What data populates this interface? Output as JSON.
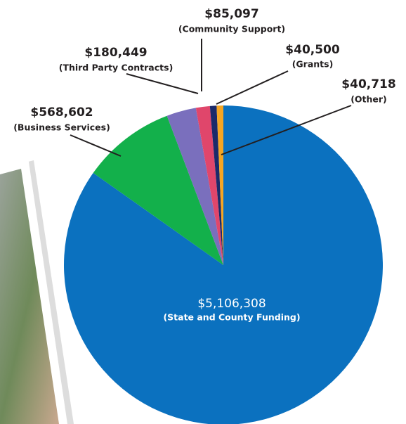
{
  "chart_data": {
    "type": "pie",
    "categories": [
      "(State and County Funding)",
      "(Business Services)",
      "(Third Party Contracts)",
      "(Community Support)",
      "(Grants)",
      "(Other)"
    ],
    "values": [
      5106308,
      568602,
      180449,
      85097,
      40500,
      40718
    ],
    "value_labels": [
      "$5,106,308",
      "$568,602",
      "$180,449",
      "$85,097",
      "$40,500",
      "$40,718"
    ],
    "colors": [
      "#0b71bf",
      "#13b04b",
      "#7a6fbd",
      "#e0466b",
      "#1b2a6a",
      "#f6a623"
    ]
  }
}
